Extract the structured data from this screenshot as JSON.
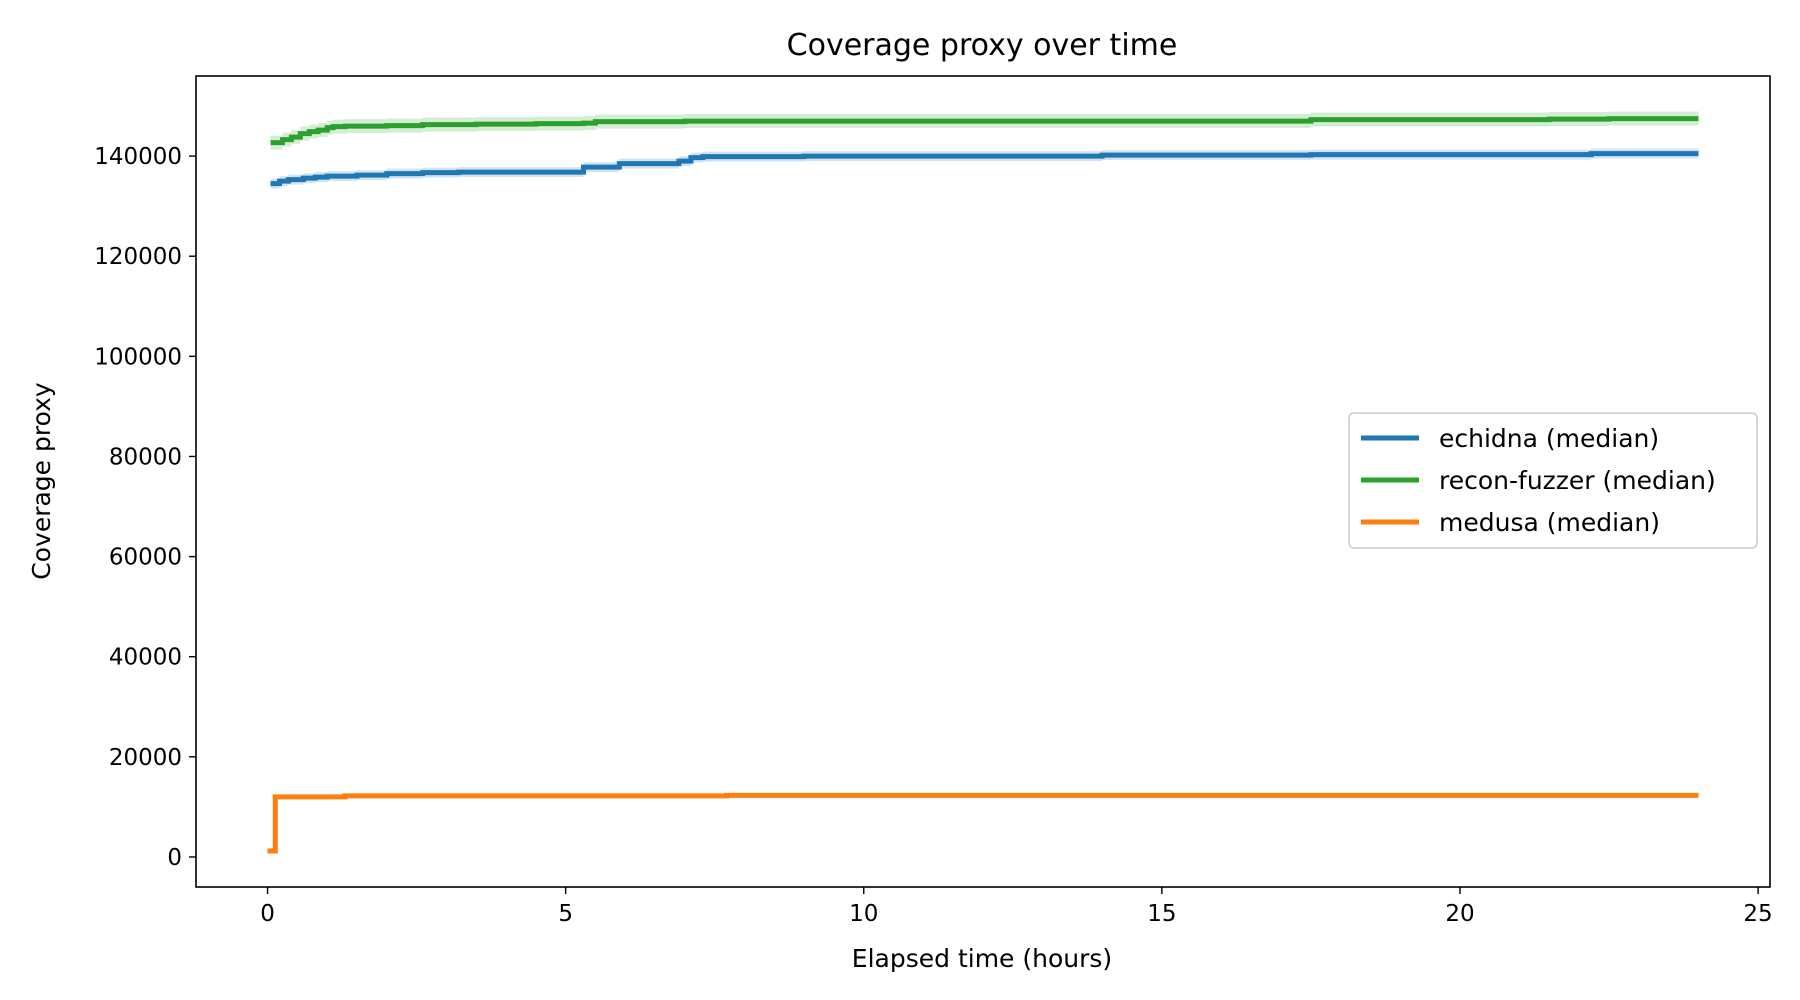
{
  "chart_data": {
    "type": "line",
    "title": "Coverage proxy over time",
    "xlabel": "Elapsed time (hours)",
    "ylabel": "Coverage proxy",
    "xlim": [
      -1.2,
      25.2
    ],
    "ylim": [
      -6000,
      156000
    ],
    "xticks": [
      0,
      5,
      10,
      15,
      20,
      25
    ],
    "yticks": [
      0,
      20000,
      40000,
      60000,
      80000,
      100000,
      120000,
      140000
    ],
    "grid": false,
    "legend_position": "center-right",
    "series": [
      {
        "name": "echidna (median)",
        "color": "#1f77b4",
        "band": 1000,
        "x": [
          0.05,
          0.2,
          0.35,
          0.6,
          0.8,
          1.0,
          1.5,
          2.0,
          2.6,
          3.2,
          4.0,
          5.0,
          5.3,
          5.45,
          5.9,
          6.4,
          6.9,
          7.1,
          7.3,
          8.0,
          9.0,
          10.0,
          12.0,
          14.0,
          17.5,
          20.0,
          22.2,
          24.0
        ],
        "y": [
          134500,
          135000,
          135300,
          135600,
          135800,
          136000,
          136200,
          136500,
          136700,
          136800,
          136800,
          136800,
          137800,
          137800,
          138500,
          138500,
          139000,
          139700,
          139900,
          139900,
          140000,
          140000,
          140000,
          140200,
          140300,
          140300,
          140500,
          140500
        ]
      },
      {
        "name": "recon-fuzzer (median)",
        "color": "#2ca02c",
        "band": 1400,
        "x": [
          0.05,
          0.25,
          0.4,
          0.55,
          0.7,
          0.85,
          1.0,
          1.1,
          1.3,
          2.0,
          2.6,
          3.5,
          4.5,
          5.3,
          5.5,
          7.0,
          10.0,
          14.0,
          17.5,
          21.5,
          22.5,
          24.0
        ],
        "y": [
          142700,
          143300,
          143800,
          144500,
          144900,
          145200,
          145700,
          145900,
          146000,
          146100,
          146300,
          146400,
          146500,
          146600,
          146900,
          147000,
          147000,
          147000,
          147300,
          147400,
          147500,
          147500
        ]
      },
      {
        "name": "medusa (median)",
        "color": "#ff7f0e",
        "band": 150,
        "x": [
          0.0,
          0.12,
          0.13,
          1.3,
          7.7,
          24.0
        ],
        "y": [
          1200,
          1200,
          12000,
          12200,
          12300,
          12300
        ]
      }
    ]
  }
}
